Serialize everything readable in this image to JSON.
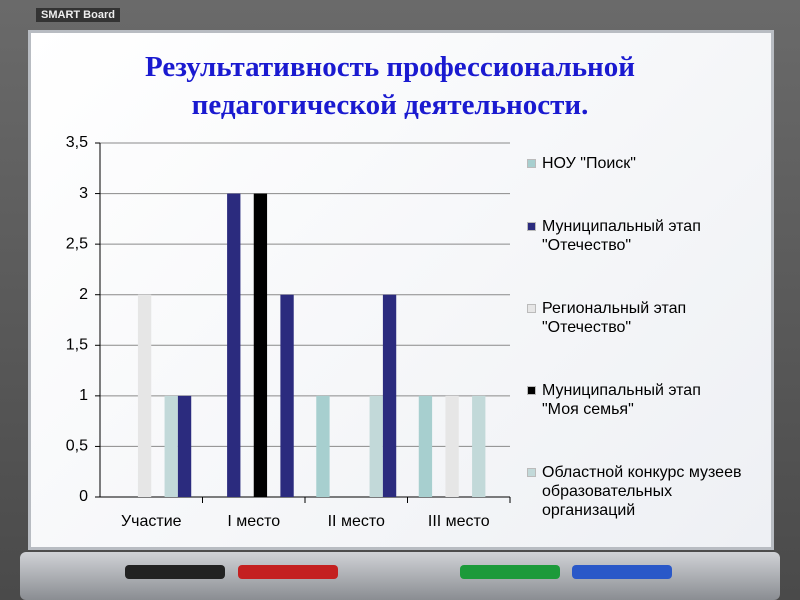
{
  "frame": {
    "logo": "SMART Board"
  },
  "chart_data": {
    "type": "bar",
    "title": "Результативность профессиональной педагогической деятельности.",
    "categories": [
      "Участие",
      "I место",
      "II место",
      "III место"
    ],
    "series": [
      {
        "name": "НОУ \"Поиск\"",
        "color": "#a7cfcf",
        "values": [
          0,
          0,
          1,
          1
        ]
      },
      {
        "name": "Муниципальный этап \"Отечество\"",
        "color": "#2b2b7e",
        "values": [
          0,
          3,
          0,
          0
        ]
      },
      {
        "name": "Региональный этап \"Отечество\"",
        "color": "#e6e6e6",
        "values": [
          2,
          0,
          0,
          1
        ]
      },
      {
        "name": "Муниципальный этап \"Моя семья\"",
        "color": "#000000",
        "values": [
          0,
          3,
          0,
          0
        ]
      },
      {
        "name": "Областной конкурс музеев образовательных организаций",
        "color": "#c2d9d9",
        "values": [
          1,
          0,
          1,
          1
        ]
      },
      {
        "color": "#2b2b7e",
        "values": [
          1,
          2,
          2,
          0
        ]
      }
    ],
    "ylim": [
      0,
      3.5
    ],
    "yticks": [
      0,
      {
        "value": 0.5,
        "label": "0,5"
      },
      1,
      {
        "value": 1.5,
        "label": "1,5"
      },
      2,
      {
        "value": 2.5,
        "label": "2,5"
      },
      3,
      {
        "value": 3.5,
        "label": "3,5"
      }
    ],
    "grid": true
  }
}
